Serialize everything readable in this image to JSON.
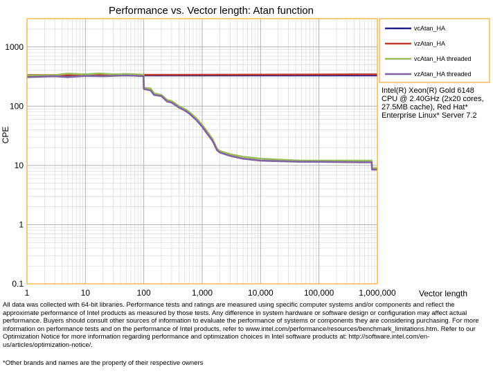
{
  "chart_data": {
    "type": "line",
    "title": "Performance vs. Vector length: Atan function",
    "xlabel": "Vector length",
    "ylabel": "CPE",
    "x_scale": "log",
    "y_scale": "log",
    "xlim": [
      1,
      1000000
    ],
    "ylim": [
      0.1,
      3000
    ],
    "x_ticks": [
      1,
      10,
      100,
      1000,
      10000,
      100000,
      1000000
    ],
    "x_tick_labels": [
      "1",
      "10",
      "100",
      "1,000",
      "10,000",
      "100,000",
      "1,000,000"
    ],
    "y_ticks": [
      0.1,
      1,
      10,
      100,
      1000
    ],
    "y_tick_labels": [
      "0.1",
      "1",
      "10",
      "100",
      "1000"
    ],
    "grid": true,
    "legend_position": "top-right",
    "series": [
      {
        "name": "vcAtan_HA",
        "color": "#1f1f8f",
        "points": [
          [
            1,
            330
          ],
          [
            100,
            330
          ],
          [
            1000000,
            330
          ]
        ]
      },
      {
        "name": "vzAtan_HA",
        "color": "#c0392b",
        "points": [
          [
            1,
            335
          ],
          [
            100,
            338
          ],
          [
            1000000,
            345
          ]
        ]
      },
      {
        "name": "vcAtan_HA threaded",
        "color": "#9bbb59",
        "points": [
          [
            1,
            330
          ],
          [
            3,
            335
          ],
          [
            5,
            355
          ],
          [
            10,
            345
          ],
          [
            17,
            358
          ],
          [
            30,
            345
          ],
          [
            50,
            350
          ],
          [
            99,
            340
          ],
          [
            100,
            205
          ],
          [
            130,
            200
          ],
          [
            150,
            165
          ],
          [
            200,
            155
          ],
          [
            250,
            128
          ],
          [
            300,
            122
          ],
          [
            400,
            100
          ],
          [
            500,
            90
          ],
          [
            600,
            80
          ],
          [
            800,
            62
          ],
          [
            1000,
            48
          ],
          [
            1200,
            38
          ],
          [
            1500,
            28
          ],
          [
            1800,
            19
          ],
          [
            2000,
            17.5
          ],
          [
            3000,
            15.5
          ],
          [
            5000,
            14
          ],
          [
            10000,
            13
          ],
          [
            20000,
            12.5
          ],
          [
            50000,
            12
          ],
          [
            100000,
            12
          ],
          [
            500000,
            12
          ],
          [
            800000,
            12
          ],
          [
            810000,
            9
          ],
          [
            1000000,
            9
          ]
        ]
      },
      {
        "name": "vzAtan_HA threaded",
        "color": "#8064a2",
        "points": [
          [
            1,
            310
          ],
          [
            3,
            320
          ],
          [
            5,
            310
          ],
          [
            10,
            325
          ],
          [
            20,
            320
          ],
          [
            50,
            330
          ],
          [
            99,
            322
          ],
          [
            100,
            195
          ],
          [
            130,
            185
          ],
          [
            150,
            155
          ],
          [
            200,
            148
          ],
          [
            250,
            120
          ],
          [
            300,
            115
          ],
          [
            400,
            95
          ],
          [
            500,
            85
          ],
          [
            600,
            75
          ],
          [
            800,
            58
          ],
          [
            1000,
            45
          ],
          [
            1200,
            35
          ],
          [
            1500,
            26
          ],
          [
            1800,
            18
          ],
          [
            2000,
            16.5
          ],
          [
            3000,
            14.5
          ],
          [
            5000,
            13
          ],
          [
            10000,
            12
          ],
          [
            20000,
            11.8
          ],
          [
            50000,
            11.5
          ],
          [
            100000,
            11.5
          ],
          [
            500000,
            11.3
          ],
          [
            800000,
            11.3
          ],
          [
            810000,
            8.5
          ],
          [
            1000000,
            8.5
          ]
        ]
      }
    ]
  },
  "system_info": "Intel(R) Xeon(R) Gold 6148 CPU @ 2.40GHz (2x20 cores, 27.5MB cache), Red Hat* Enterprise Linux* Server 7.2",
  "disclaimer": "All data was collected with 64-bit libraries. Performance tests and ratings are measured using specific computer systems and/or components and reflect the approximate performance of Intel products as measured by those tests. Any difference in system hardware or software design or configuration may affect actual performance. Buyers should consult other sources of information to evaluate the performance of systems or components they are considering purchasing. For more information on performance tests and on the performance of Intel products, refer to www.intel.com/performance/resources/benchmark_limitations.htm. Refer to our Optimization Notice for more information regarding performance and optimization choices in Intel software products at: http://software.intel.com/en-us/articles/optimization-notice/.",
  "trademark": "*Other brands and names are the property of their respective owners"
}
